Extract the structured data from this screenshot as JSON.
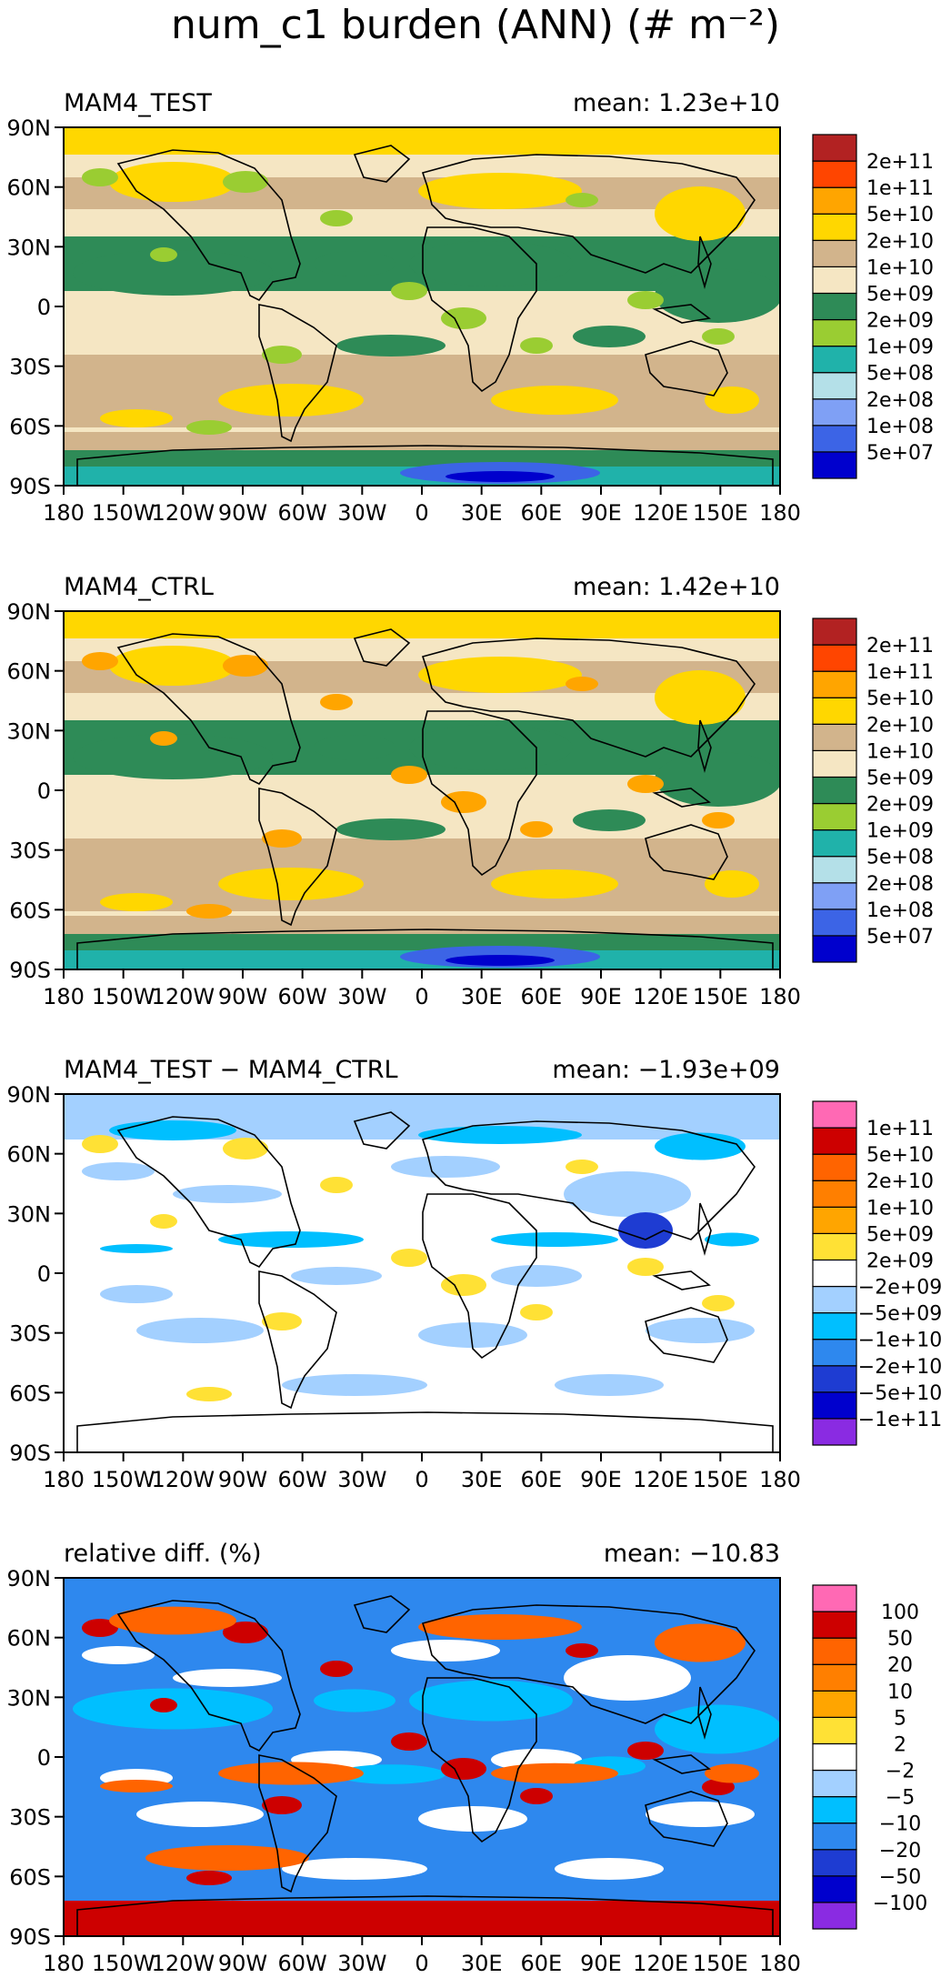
{
  "title": "num_c1 burden (ANN) (# m⁻²)",
  "colors": {
    "burden": [
      "#0000cd",
      "#3c64e6",
      "#7fa0f5",
      "#b4e0e8",
      "#20b2aa",
      "#9acd32",
      "#2e8b57",
      "#f5e6c3",
      "#d2b48c",
      "#ffd700",
      "#ffa500",
      "#ff4500",
      "#b22222"
    ],
    "diff": [
      "#8a2be2",
      "#0000cd",
      "#1e3cd2",
      "#2e88ee",
      "#00bfff",
      "#a3d0ff",
      "#ffffff",
      "#ffe135",
      "#ffa500",
      "#ff7f00",
      "#ff6400",
      "#cd0000",
      "#ff69b4"
    ]
  },
  "axes": {
    "lat_ticks": [
      "90N",
      "60N",
      "30N",
      "0",
      "30S",
      "60S",
      "90S"
    ],
    "lon_ticks": [
      "180",
      "150W",
      "120W",
      "90W",
      "60W",
      "30W",
      "0",
      "30E",
      "60E",
      "90E",
      "120E",
      "150E",
      "180"
    ],
    "xlim": [
      -180,
      180
    ],
    "ylim": [
      -90,
      90
    ]
  },
  "chart_data": [
    {
      "type": "heatmap",
      "panel_label": "MAM4_TEST",
      "mean_label": "mean: 1.23e+10",
      "colorbar_labels": [
        "2e+11",
        "1e+11",
        "5e+10",
        "2e+10",
        "1e+10",
        "5e+09",
        "2e+09",
        "1e+09",
        "5e+08",
        "2e+08",
        "1e+08",
        "5e+07"
      ]
    },
    {
      "type": "heatmap",
      "panel_label": "MAM4_CTRL",
      "mean_label": "mean: 1.42e+10",
      "colorbar_labels": [
        "2e+11",
        "1e+11",
        "5e+10",
        "2e+10",
        "1e+10",
        "5e+09",
        "2e+09",
        "1e+09",
        "5e+08",
        "2e+08",
        "1e+08",
        "5e+07"
      ]
    },
    {
      "type": "heatmap",
      "panel_label": "MAM4_TEST − MAM4_CTRL",
      "mean_label": "mean: −1.93e+09",
      "colorbar_labels": [
        "1e+11",
        "5e+10",
        "2e+10",
        "1e+10",
        "5e+09",
        "2e+09",
        "−2e+09",
        "−5e+09",
        "−1e+10",
        "−2e+10",
        "−5e+10",
        "−1e+11"
      ]
    },
    {
      "type": "heatmap",
      "panel_label": "relative diff. (%)",
      "mean_label": "mean: −10.83",
      "colorbar_labels": [
        "100",
        "50",
        "20",
        "10",
        "5",
        "2",
        "−2",
        "−5",
        "−10",
        "−20",
        "−50",
        "−100"
      ]
    }
  ]
}
